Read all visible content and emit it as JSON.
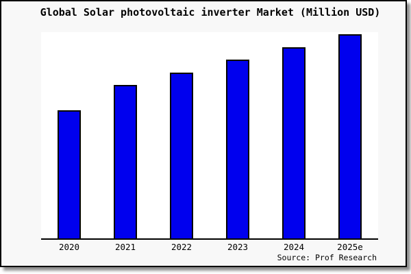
{
  "frame": {
    "background": "#f8f8f8",
    "border_color": "#000000",
    "plot_background": "#ffffff"
  },
  "chart_data": {
    "type": "bar",
    "title": "Global Solar photovoltaic inverter Market (Million USD)",
    "categories": [
      "2020",
      "2021",
      "2022",
      "2023",
      "2024",
      "2025e"
    ],
    "values": [
      62.8,
      75.2,
      81.2,
      87.6,
      93.6,
      100
    ],
    "value_basis": "percent_of_tallest_bar (chart shows no y-axis scale, gridlines or data labels)",
    "xlabel": "",
    "ylabel": "",
    "ylim": [
      0,
      100
    ],
    "grid": "off",
    "legend": "none",
    "bar_color": "#0000EE",
    "bar_border_color": "#000000",
    "annotations": [
      "Source: Prof Research"
    ]
  }
}
